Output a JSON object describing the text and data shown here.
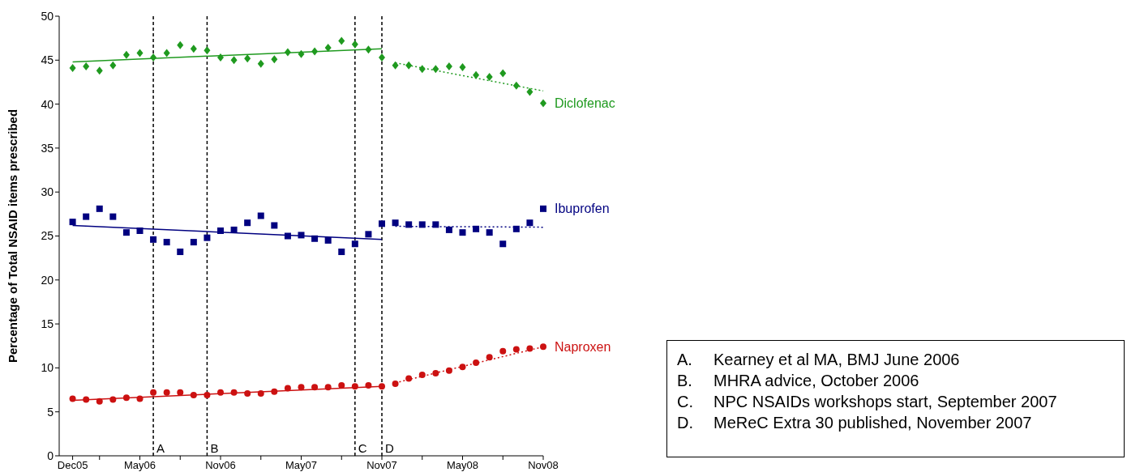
{
  "chart_data": {
    "type": "scatter",
    "ylabel": "Percentage of Total NSAID items prescribed",
    "x": [
      "2005-12",
      "2006-01",
      "2006-02",
      "2006-03",
      "2006-04",
      "2006-05",
      "2006-06",
      "2006-07",
      "2006-08",
      "2006-09",
      "2006-10",
      "2006-11",
      "2006-12",
      "2007-01",
      "2007-02",
      "2007-03",
      "2007-04",
      "2007-05",
      "2007-06",
      "2007-07",
      "2007-08",
      "2007-09",
      "2007-10",
      "2007-11",
      "2007-12",
      "2008-01",
      "2008-02",
      "2008-03",
      "2008-04",
      "2008-05",
      "2008-06",
      "2008-07",
      "2008-08",
      "2008-09",
      "2008-10",
      "2008-11"
    ],
    "series": [
      {
        "name": "Diclofenac",
        "color": "#1f9a1f",
        "marker": "diamond",
        "values": [
          44.1,
          44.3,
          43.8,
          44.4,
          45.6,
          45.8,
          45.3,
          45.8,
          46.7,
          46.3,
          46.1,
          45.3,
          45.0,
          45.2,
          44.6,
          45.1,
          45.9,
          45.7,
          46.0,
          46.4,
          47.2,
          46.8,
          46.2,
          45.3,
          44.4,
          44.4,
          44.0,
          44.0,
          44.3,
          44.2,
          43.3,
          43.1,
          43.5,
          42.1,
          41.4,
          40.1
        ]
      },
      {
        "name": "Ibuprofen",
        "color": "#000080",
        "marker": "square",
        "values": [
          26.6,
          27.2,
          28.1,
          27.2,
          25.4,
          25.6,
          24.6,
          24.3,
          23.2,
          24.3,
          24.8,
          25.6,
          25.7,
          26.5,
          27.3,
          26.2,
          25.0,
          25.1,
          24.7,
          24.5,
          23.2,
          24.1,
          25.2,
          26.4,
          26.5,
          26.3,
          26.3,
          26.3,
          25.7,
          25.4,
          25.8,
          25.4,
          24.1,
          25.8,
          26.5,
          28.1
        ]
      },
      {
        "name": "Naproxen",
        "color": "#cc1111",
        "marker": "circle",
        "values": [
          6.5,
          6.4,
          6.2,
          6.4,
          6.6,
          6.5,
          7.2,
          7.2,
          7.2,
          6.9,
          6.9,
          7.2,
          7.2,
          7.1,
          7.1,
          7.3,
          7.7,
          7.8,
          7.8,
          7.8,
          8.0,
          7.9,
          8.0,
          7.9,
          8.2,
          8.8,
          9.2,
          9.4,
          9.7,
          10.1,
          10.6,
          11.2,
          11.9,
          12.1,
          12.2,
          12.4
        ]
      },
      {
        "type": "line",
        "color": "#1f9a1f",
        "line_style": "solid",
        "x": [
          "2005-12",
          "2007-11"
        ],
        "values": [
          44.8,
          46.3
        ]
      },
      {
        "type": "line",
        "color": "#1f9a1f",
        "line_style": "dotted",
        "x": [
          "2007-12",
          "2008-11"
        ],
        "values": [
          44.7,
          41.5
        ]
      },
      {
        "type": "line",
        "color": "#000080",
        "line_style": "solid",
        "x": [
          "2005-12",
          "2007-11"
        ],
        "values": [
          26.2,
          24.6
        ]
      },
      {
        "type": "line",
        "color": "#000080",
        "line_style": "dotted",
        "x": [
          "2007-12",
          "2008-11"
        ],
        "values": [
          26.1,
          26.0
        ]
      },
      {
        "type": "line",
        "color": "#cc1111",
        "line_style": "solid",
        "x": [
          "2005-12",
          "2007-11"
        ],
        "values": [
          6.3,
          7.9
        ]
      },
      {
        "type": "line",
        "color": "#cc1111",
        "line_style": "dotted",
        "x": [
          "2007-12",
          "2008-11"
        ],
        "values": [
          8.3,
          12.4
        ]
      }
    ],
    "xlim": [
      "2005-11",
      "2008-11"
    ],
    "xticks": [
      {
        "value": "2005-12",
        "label": "Dec05"
      },
      {
        "value": "2006-02",
        "label": null
      },
      {
        "value": "2006-05",
        "label": "May06"
      },
      {
        "value": "2006-08",
        "label": null
      },
      {
        "value": "2006-11",
        "label": "Nov06"
      },
      {
        "value": "2007-02",
        "label": null
      },
      {
        "value": "2007-05",
        "label": "May07"
      },
      {
        "value": "2007-08",
        "label": null
      },
      {
        "value": "2007-11",
        "label": "Nov07"
      },
      {
        "value": "2008-02",
        "label": null
      },
      {
        "value": "2008-05",
        "label": "May08"
      },
      {
        "value": "2008-08",
        "label": null
      },
      {
        "value": "2008-11",
        "label": "Nov08"
      }
    ],
    "ylim": [
      0,
      50
    ],
    "yticks": [
      0,
      5,
      10,
      15,
      20,
      25,
      30,
      35,
      40,
      45,
      50
    ],
    "grid": false,
    "ref_lines": [
      {
        "axis": "x",
        "value": "2006-06",
        "label": "A",
        "color": "#000000",
        "line_style": "dashed"
      },
      {
        "axis": "x",
        "value": "2006-10",
        "label": "B",
        "color": "#000000",
        "line_style": "dashed"
      },
      {
        "axis": "x",
        "value": "2007-09",
        "label": "C",
        "color": "#000000",
        "line_style": "dashed"
      },
      {
        "axis": "x",
        "value": "2007-11",
        "label": "D",
        "color": "#000000",
        "line_style": "dashed"
      }
    ],
    "annotations": [
      "A. Kearney et al MA, BMJ June 2006",
      "B. MHRA advice, October 2006",
      "C. NPC NSAIDs workshops start, September 2007",
      "D. MeReC Extra 30 published, November 2007"
    ]
  }
}
